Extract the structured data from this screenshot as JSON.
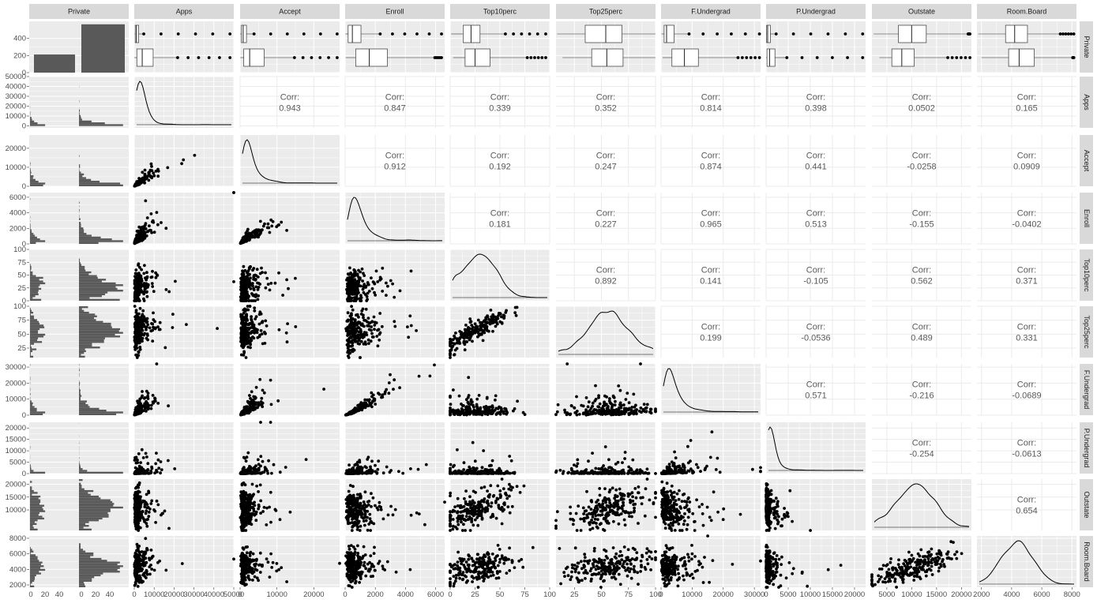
{
  "chart_data": {
    "type": "scatter-matrix",
    "title": "",
    "variables": [
      "Private",
      "Apps",
      "Accept",
      "Enroll",
      "Top10perc",
      "Top25perc",
      "F.Undergrad",
      "P.Undergrad",
      "Outstate",
      "Room.Board"
    ],
    "x_ranges": [
      [
        0,
        60
      ],
      [
        0,
        50000
      ],
      [
        0,
        27000
      ],
      [
        0,
        6600
      ],
      [
        0,
        100
      ],
      [
        8,
        100
      ],
      [
        0,
        32000
      ],
      [
        0,
        22500
      ],
      [
        2000,
        22000
      ],
      [
        1700,
        8300
      ]
    ],
    "y_ranges": [
      [
        0,
        600
      ],
      [
        -2000,
        50000
      ],
      [
        0,
        27000
      ],
      [
        0,
        6600
      ],
      [
        0,
        100
      ],
      [
        8,
        100
      ],
      [
        0,
        32000
      ],
      [
        0,
        22500
      ],
      [
        2000,
        22000
      ],
      [
        1700,
        8300
      ]
    ],
    "x_ticks": [
      [
        "0",
        "20",
        "40",
        "0",
        "20",
        "40"
      ],
      [
        "0",
        "10000",
        "20000",
        "30000",
        "40000",
        "50000"
      ],
      [
        "0",
        "10000",
        "20000"
      ],
      [
        "0",
        "2000",
        "4000",
        "6000"
      ],
      [
        "0",
        "25",
        "50",
        "75",
        "100"
      ],
      [
        "25",
        "50",
        "75",
        "100"
      ],
      [
        "0",
        "10000",
        "20000",
        "30000"
      ],
      [
        "0",
        "5000",
        "10000",
        "15000",
        "20000"
      ],
      [
        "5000",
        "10000",
        "15000",
        "20000"
      ],
      [
        "2000",
        "4000",
        "6000",
        "8000"
      ]
    ],
    "y_ticks": [
      [
        "0",
        "200",
        "400"
      ],
      [
        "0",
        "10000",
        "20000",
        "30000",
        "40000",
        "50000"
      ],
      [
        "0",
        "10000",
        "20000"
      ],
      [
        "0",
        "2000",
        "4000",
        "6000"
      ],
      [
        "0",
        "25",
        "50",
        "75",
        "100"
      ],
      [
        "25",
        "50",
        "75",
        "100"
      ],
      [
        "0",
        "10000",
        "20000",
        "30000"
      ],
      [
        "0",
        "5000",
        "10000",
        "15000",
        "20000"
      ],
      [
        "10000",
        "15000",
        "20000"
      ],
      [
        "2000",
        "4000",
        "6000",
        "8000"
      ]
    ],
    "private_counts": {
      "No": 212,
      "Yes": 565
    },
    "correlations": [
      {
        "row": "Apps",
        "col": "Accept",
        "label": "Corr:",
        "value": "0.943"
      },
      {
        "row": "Apps",
        "col": "Enroll",
        "label": "Corr:",
        "value": "0.847"
      },
      {
        "row": "Apps",
        "col": "Top10perc",
        "label": "Corr:",
        "value": "0.339"
      },
      {
        "row": "Apps",
        "col": "Top25perc",
        "label": "Corr:",
        "value": "0.352"
      },
      {
        "row": "Apps",
        "col": "F.Undergrad",
        "label": "Corr:",
        "value": "0.814"
      },
      {
        "row": "Apps",
        "col": "P.Undergrad",
        "label": "Corr:",
        "value": "0.398"
      },
      {
        "row": "Apps",
        "col": "Outstate",
        "label": "Corr:",
        "value": "0.0502"
      },
      {
        "row": "Apps",
        "col": "Room.Board",
        "label": "Corr:",
        "value": "0.165"
      },
      {
        "row": "Accept",
        "col": "Enroll",
        "label": "Corr:",
        "value": "0.912"
      },
      {
        "row": "Accept",
        "col": "Top10perc",
        "label": "Corr:",
        "value": "0.192"
      },
      {
        "row": "Accept",
        "col": "Top25perc",
        "label": "Corr:",
        "value": "0.247"
      },
      {
        "row": "Accept",
        "col": "F.Undergrad",
        "label": "Corr:",
        "value": "0.874"
      },
      {
        "row": "Accept",
        "col": "P.Undergrad",
        "label": "Corr:",
        "value": "0.441"
      },
      {
        "row": "Accept",
        "col": "Outstate",
        "label": "Corr:",
        "value": "-0.0258"
      },
      {
        "row": "Accept",
        "col": "Room.Board",
        "label": "Corr:",
        "value": "0.0909"
      },
      {
        "row": "Enroll",
        "col": "Top10perc",
        "label": "Corr:",
        "value": "0.181"
      },
      {
        "row": "Enroll",
        "col": "Top25perc",
        "label": "Corr:",
        "value": "0.227"
      },
      {
        "row": "Enroll",
        "col": "F.Undergrad",
        "label": "Corr:",
        "value": "0.965"
      },
      {
        "row": "Enroll",
        "col": "P.Undergrad",
        "label": "Corr:",
        "value": "0.513"
      },
      {
        "row": "Enroll",
        "col": "Outstate",
        "label": "Corr:",
        "value": "-0.155"
      },
      {
        "row": "Enroll",
        "col": "Room.Board",
        "label": "Corr:",
        "value": "-0.0402"
      },
      {
        "row": "Top10perc",
        "col": "Top25perc",
        "label": "Corr:",
        "value": "0.892"
      },
      {
        "row": "Top10perc",
        "col": "F.Undergrad",
        "label": "Corr:",
        "value": "0.141"
      },
      {
        "row": "Top10perc",
        "col": "P.Undergrad",
        "label": "Corr:",
        "value": "-0.105"
      },
      {
        "row": "Top10perc",
        "col": "Outstate",
        "label": "Corr:",
        "value": "0.562"
      },
      {
        "row": "Top10perc",
        "col": "Room.Board",
        "label": "Corr:",
        "value": "0.371"
      },
      {
        "row": "Top25perc",
        "col": "F.Undergrad",
        "label": "Corr:",
        "value": "0.199"
      },
      {
        "row": "Top25perc",
        "col": "P.Undergrad",
        "label": "Corr:",
        "value": "-0.0536"
      },
      {
        "row": "Top25perc",
        "col": "Outstate",
        "label": "Corr:",
        "value": "0.489"
      },
      {
        "row": "Top25perc",
        "col": "Room.Board",
        "label": "Corr:",
        "value": "0.331"
      },
      {
        "row": "F.Undergrad",
        "col": "P.Undergrad",
        "label": "Corr:",
        "value": "0.571"
      },
      {
        "row": "F.Undergrad",
        "col": "Outstate",
        "label": "Corr:",
        "value": "-0.216"
      },
      {
        "row": "F.Undergrad",
        "col": "Room.Board",
        "label": "Corr:",
        "value": "-0.0689"
      },
      {
        "row": "P.Undergrad",
        "col": "Outstate",
        "label": "Corr:",
        "value": "-0.254"
      },
      {
        "row": "P.Undergrad",
        "col": "Room.Board",
        "label": "Corr:",
        "value": "-0.0613"
      },
      {
        "row": "Outstate",
        "col": "Room.Board",
        "label": "Corr:",
        "value": "0.654"
      }
    ],
    "summary_stats": {
      "No": {
        "Apps": [
          70,
          463,
          1050,
          2190,
          48094
        ],
        "Accept": [
          61,
          357,
          825,
          1730,
          26330
        ],
        "Enroll": [
          20,
          200,
          480,
          1050,
          6392
        ],
        "Top10perc": [
          1,
          13,
          21,
          30,
          96
        ],
        "Top25perc": [
          9,
          35,
          54,
          69,
          100
        ],
        "F.Undergrad": [
          139,
          992,
          1780,
          4200,
          31643
        ],
        "P.Undergrad": [
          1,
          95,
          353,
          967,
          21836
        ],
        "Outstate": [
          2340,
          7320,
          9990,
          12925,
          21700
        ],
        "Room.Board": [
          1780,
          3597,
          4200,
          5050,
          8124
        ]
      },
      "Yes": {
        "Apps": [
          81,
          1300,
          4000,
          9500,
          48094
        ],
        "Accept": [
          72,
          1000,
          2600,
          6500,
          26330
        ],
        "Enroll": [
          35,
          700,
          1600,
          2800,
          6392
        ],
        "Top10perc": [
          3,
          15,
          25,
          40,
          96
        ],
        "Top25perc": [
          14,
          41,
          55,
          70,
          100
        ],
        "F.Undergrad": [
          500,
          3500,
          7500,
          12000,
          31643
        ],
        "P.Undergrad": [
          1,
          200,
          800,
          2000,
          21836
        ],
        "Outstate": [
          3500,
          6000,
          8000,
          10500,
          21700
        ],
        "Room.Board": [
          2000,
          3800,
          4500,
          5500,
          8124
        ]
      }
    },
    "grid": true,
    "legend": "none"
  },
  "colors": {
    "panel_bg": "#ebebeb",
    "grid": "#ffffff",
    "strip_bg": "#d9d9d9",
    "point": "#000000",
    "bar": "#595959",
    "corr_text": "#595959"
  }
}
